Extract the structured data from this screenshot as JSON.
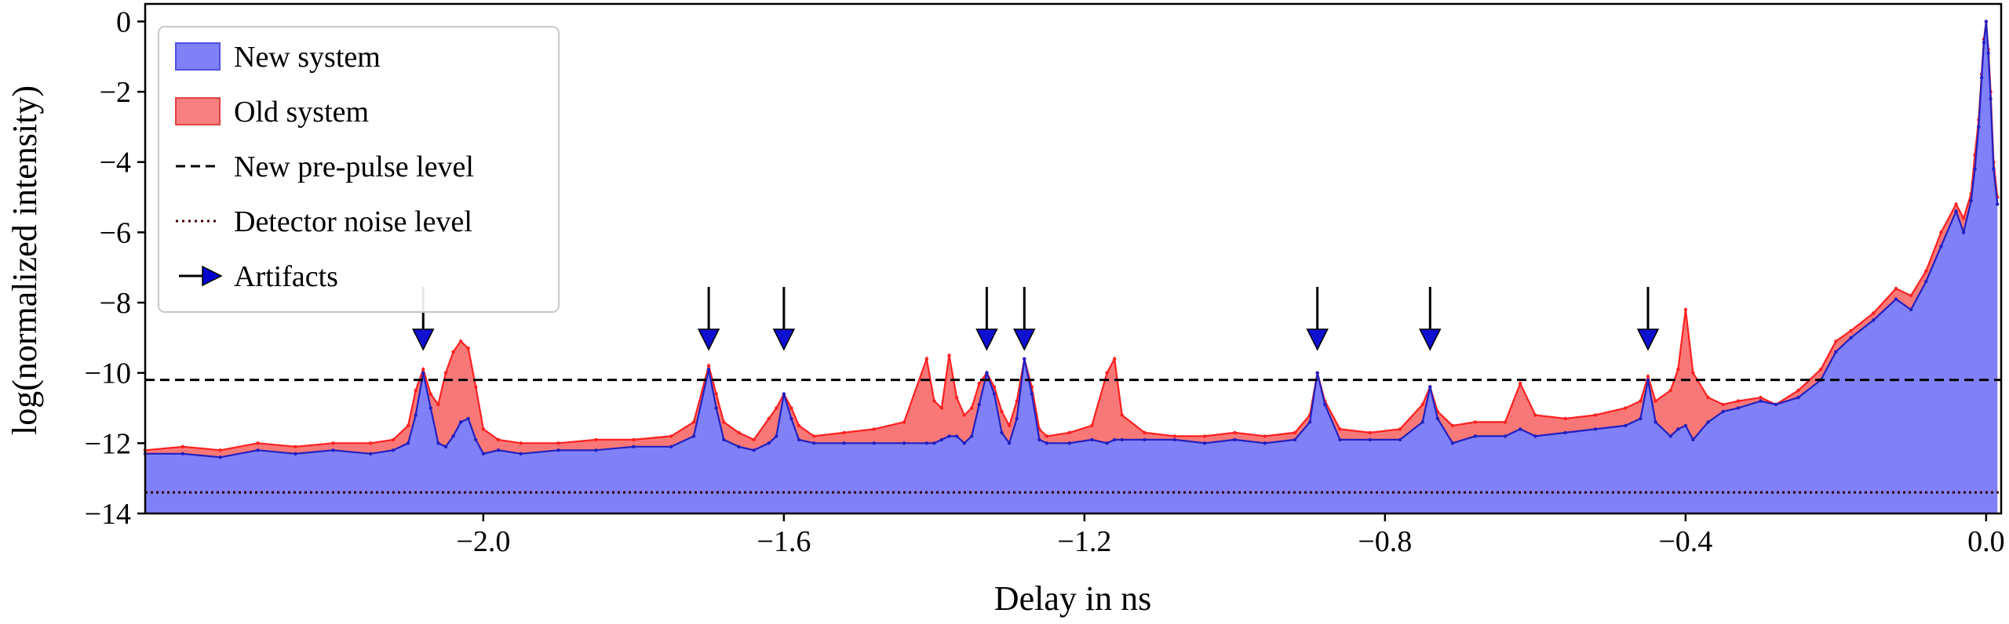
{
  "chart_data": {
    "type": "area",
    "title": "",
    "xlabel": "Delay in ns",
    "ylabel": "log(normalized intensity)",
    "xlim": [
      -2.45,
      0.02
    ],
    "ylim": [
      -14,
      0.5
    ],
    "xticks": [
      -2.0,
      -1.6,
      -1.2,
      -0.8,
      -0.4,
      0.0
    ],
    "xtick_labels": [
      "−2.0",
      "−1.6",
      "−1.2",
      "−0.8",
      "−0.4",
      "0.0"
    ],
    "yticks": [
      0,
      -2,
      -4,
      -6,
      -8,
      -10,
      -12,
      -14
    ],
    "ytick_labels": [
      "0",
      "−2",
      "−4",
      "−6",
      "−8",
      "−10",
      "−12",
      "−14"
    ],
    "grid": false,
    "legend_position": "upper-left",
    "legend": [
      {
        "label": "New system",
        "kind": "patch",
        "color": "#8080f8",
        "edge": "#5050e0"
      },
      {
        "label": "Old system",
        "kind": "patch",
        "color": "#f88080",
        "edge": "#e04040"
      },
      {
        "label": "New pre-pulse level",
        "kind": "dashed",
        "color": "#000000"
      },
      {
        "label": "Detector noise level",
        "kind": "dotted",
        "color": "#400000"
      },
      {
        "label": "Artifacts",
        "kind": "arrow",
        "color": "#0000cc"
      }
    ],
    "hlines": [
      {
        "name": "New pre-pulse level",
        "y": -10.2
      },
      {
        "name": "Detector noise level",
        "y": -13.4
      }
    ],
    "artifacts_x": [
      -2.08,
      -1.7,
      -1.6,
      -1.33,
      -1.28,
      -0.89,
      -0.74,
      -0.45
    ],
    "series": [
      {
        "name": "Old system",
        "color": "#f87878",
        "line": "#ff2020",
        "x": [
          -2.45,
          -2.4,
          -2.35,
          -2.3,
          -2.25,
          -2.2,
          -2.15,
          -2.12,
          -2.1,
          -2.09,
          -2.08,
          -2.07,
          -2.06,
          -2.05,
          -2.04,
          -2.03,
          -2.02,
          -2.01,
          -2.0,
          -1.98,
          -1.95,
          -1.9,
          -1.85,
          -1.8,
          -1.75,
          -1.72,
          -1.7,
          -1.69,
          -1.68,
          -1.66,
          -1.64,
          -1.62,
          -1.61,
          -1.6,
          -1.59,
          -1.58,
          -1.56,
          -1.52,
          -1.48,
          -1.44,
          -1.41,
          -1.4,
          -1.39,
          -1.38,
          -1.37,
          -1.36,
          -1.35,
          -1.34,
          -1.33,
          -1.32,
          -1.31,
          -1.3,
          -1.29,
          -1.28,
          -1.27,
          -1.26,
          -1.25,
          -1.22,
          -1.19,
          -1.17,
          -1.16,
          -1.15,
          -1.12,
          -1.08,
          -1.04,
          -1.0,
          -0.96,
          -0.92,
          -0.9,
          -0.89,
          -0.88,
          -0.86,
          -0.82,
          -0.78,
          -0.75,
          -0.74,
          -0.73,
          -0.71,
          -0.68,
          -0.64,
          -0.62,
          -0.6,
          -0.56,
          -0.52,
          -0.48,
          -0.46,
          -0.45,
          -0.44,
          -0.42,
          -0.41,
          -0.4,
          -0.39,
          -0.37,
          -0.35,
          -0.33,
          -0.3,
          -0.28,
          -0.25,
          -0.22,
          -0.2,
          -0.18,
          -0.15,
          -0.12,
          -0.1,
          -0.08,
          -0.06,
          -0.04,
          -0.03,
          -0.02,
          -0.015,
          -0.01,
          -0.006,
          -0.003,
          0.0,
          0.003,
          0.006,
          0.01,
          0.015
        ],
        "y": [
          -12.2,
          -12.1,
          -12.2,
          -12.0,
          -12.1,
          -12.0,
          -12.0,
          -11.9,
          -11.5,
          -10.5,
          -9.9,
          -10.6,
          -10.9,
          -10.0,
          -9.4,
          -9.1,
          -9.3,
          -10.4,
          -11.6,
          -11.9,
          -12.0,
          -12.0,
          -11.9,
          -11.9,
          -11.8,
          -11.4,
          -9.8,
          -10.6,
          -11.4,
          -11.7,
          -11.9,
          -11.3,
          -11.0,
          -10.6,
          -11.0,
          -11.5,
          -11.8,
          -11.7,
          -11.6,
          -11.4,
          -9.6,
          -10.8,
          -11.0,
          -9.5,
          -10.7,
          -11.2,
          -11.0,
          -10.3,
          -10.0,
          -10.4,
          -11.1,
          -11.5,
          -10.8,
          -9.6,
          -10.4,
          -11.6,
          -11.8,
          -11.7,
          -11.5,
          -10.0,
          -9.6,
          -11.2,
          -11.7,
          -11.8,
          -11.8,
          -11.7,
          -11.8,
          -11.7,
          -11.2,
          -10.0,
          -10.8,
          -11.6,
          -11.7,
          -11.6,
          -10.9,
          -10.4,
          -11.1,
          -11.5,
          -11.4,
          -11.4,
          -10.3,
          -11.2,
          -11.3,
          -11.2,
          -11.0,
          -10.8,
          -10.1,
          -10.8,
          -10.5,
          -9.9,
          -8.2,
          -10.0,
          -10.7,
          -10.9,
          -10.8,
          -10.7,
          -10.9,
          -10.5,
          -9.9,
          -9.1,
          -8.8,
          -8.3,
          -7.6,
          -7.8,
          -7.1,
          -6.0,
          -5.2,
          -5.6,
          -4.9,
          -3.8,
          -2.8,
          -1.5,
          -0.5,
          0.0,
          -0.8,
          -2.0,
          -4.0,
          -5.0
        ]
      },
      {
        "name": "New system",
        "color": "#8080f8",
        "line": "#2020c0",
        "x": [
          -2.45,
          -2.4,
          -2.35,
          -2.3,
          -2.25,
          -2.2,
          -2.15,
          -2.12,
          -2.1,
          -2.09,
          -2.08,
          -2.07,
          -2.06,
          -2.05,
          -2.04,
          -2.03,
          -2.02,
          -2.01,
          -2.0,
          -1.98,
          -1.95,
          -1.9,
          -1.85,
          -1.8,
          -1.75,
          -1.72,
          -1.7,
          -1.69,
          -1.68,
          -1.66,
          -1.64,
          -1.62,
          -1.61,
          -1.6,
          -1.59,
          -1.58,
          -1.56,
          -1.52,
          -1.48,
          -1.44,
          -1.41,
          -1.4,
          -1.39,
          -1.38,
          -1.37,
          -1.36,
          -1.35,
          -1.34,
          -1.33,
          -1.32,
          -1.31,
          -1.3,
          -1.29,
          -1.28,
          -1.27,
          -1.26,
          -1.25,
          -1.22,
          -1.19,
          -1.17,
          -1.16,
          -1.15,
          -1.12,
          -1.08,
          -1.04,
          -1.0,
          -0.96,
          -0.92,
          -0.9,
          -0.89,
          -0.88,
          -0.86,
          -0.82,
          -0.78,
          -0.75,
          -0.74,
          -0.73,
          -0.71,
          -0.68,
          -0.64,
          -0.62,
          -0.6,
          -0.56,
          -0.52,
          -0.48,
          -0.46,
          -0.45,
          -0.44,
          -0.42,
          -0.41,
          -0.4,
          -0.39,
          -0.37,
          -0.35,
          -0.33,
          -0.3,
          -0.28,
          -0.25,
          -0.22,
          -0.2,
          -0.18,
          -0.15,
          -0.12,
          -0.1,
          -0.08,
          -0.06,
          -0.04,
          -0.03,
          -0.02,
          -0.015,
          -0.01,
          -0.006,
          -0.003,
          0.0,
          0.003,
          0.006,
          0.01,
          0.015
        ],
        "y": [
          -12.3,
          -12.3,
          -12.4,
          -12.2,
          -12.3,
          -12.2,
          -12.3,
          -12.2,
          -12.0,
          -11.2,
          -10.0,
          -11.0,
          -12.0,
          -12.1,
          -11.8,
          -11.4,
          -11.3,
          -11.9,
          -12.3,
          -12.2,
          -12.3,
          -12.2,
          -12.2,
          -12.1,
          -12.1,
          -11.8,
          -9.9,
          -11.0,
          -11.9,
          -12.1,
          -12.2,
          -12.0,
          -11.8,
          -10.6,
          -11.3,
          -11.9,
          -12.0,
          -12.0,
          -12.0,
          -12.0,
          -12.0,
          -12.0,
          -11.9,
          -11.8,
          -11.8,
          -12.0,
          -11.8,
          -10.9,
          -10.0,
          -10.6,
          -11.7,
          -12.0,
          -11.3,
          -9.6,
          -10.6,
          -11.9,
          -12.0,
          -12.0,
          -11.9,
          -12.0,
          -11.9,
          -11.9,
          -11.9,
          -11.9,
          -12.0,
          -11.9,
          -12.0,
          -11.9,
          -11.4,
          -10.0,
          -10.9,
          -11.9,
          -11.9,
          -11.9,
          -11.4,
          -10.4,
          -11.3,
          -12.0,
          -11.8,
          -11.8,
          -11.6,
          -11.8,
          -11.7,
          -11.6,
          -11.5,
          -11.3,
          -10.2,
          -11.4,
          -11.8,
          -11.6,
          -11.5,
          -11.9,
          -11.4,
          -11.1,
          -11.0,
          -10.8,
          -10.9,
          -10.7,
          -10.2,
          -9.4,
          -9.0,
          -8.5,
          -7.9,
          -8.2,
          -7.4,
          -6.4,
          -5.4,
          -6.0,
          -5.1,
          -4.2,
          -3.0,
          -1.6,
          -0.6,
          0.0,
          -0.9,
          -2.2,
          -4.2,
          -5.2
        ]
      }
    ]
  }
}
